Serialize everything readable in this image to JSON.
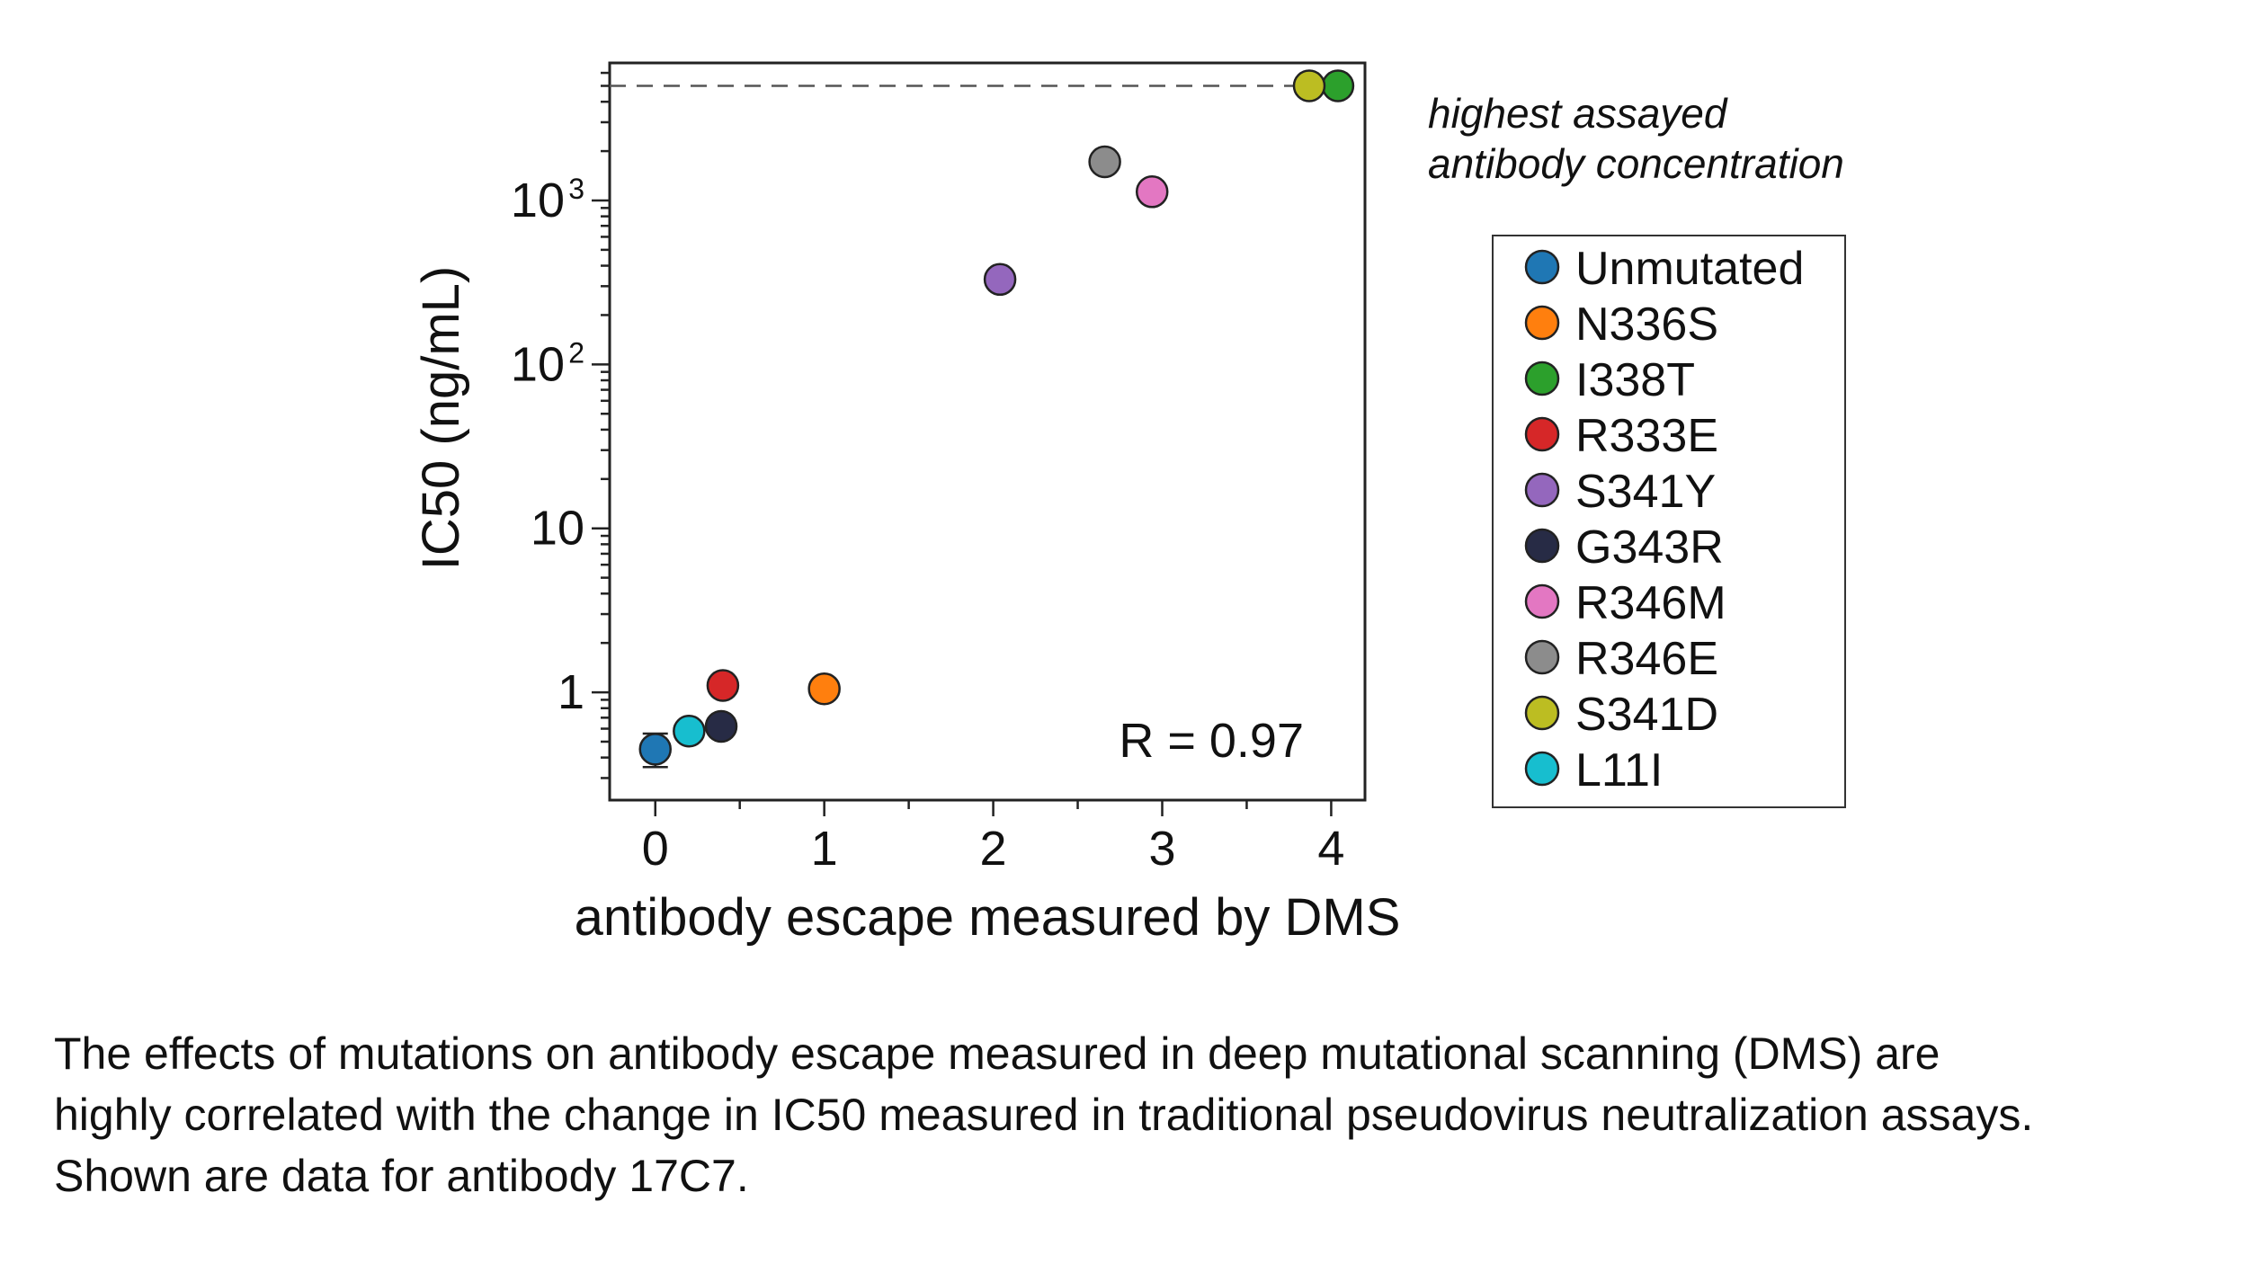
{
  "chart_data": {
    "type": "scatter",
    "xlabel": "antibody escape measured by DMS",
    "ylabel": "IC50 (ng/mL)",
    "xlim": [
      -0.27,
      4.2
    ],
    "ylim": [
      0.22,
      6900
    ],
    "yscale": "log",
    "x_ticks": [
      0,
      1,
      2,
      3,
      4
    ],
    "y_ticks": [
      {
        "value": 1,
        "label": "1",
        "sup": ""
      },
      {
        "value": 10,
        "label": "10",
        "sup": ""
      },
      {
        "value": 100,
        "label": "10",
        "sup": "2"
      },
      {
        "value": 1000,
        "label": "10",
        "sup": "3"
      }
    ],
    "reference_line": {
      "y": 5000,
      "label_lines": [
        "highest assayed",
        "antibody concentration"
      ]
    },
    "annotation": "R = 0.97",
    "legend_position": "right",
    "series": [
      {
        "name": "Unmutated",
        "color": "#1f77b4",
        "x": 0.0,
        "y": 0.45,
        "error": [
          0.35,
          0.56
        ]
      },
      {
        "name": "N336S",
        "color": "#ff7f0e",
        "x": 1.0,
        "y": 1.05
      },
      {
        "name": "I338T",
        "color": "#2ca02c",
        "x": 4.04,
        "y": 5000
      },
      {
        "name": "R333E",
        "color": "#d62728",
        "x": 0.4,
        "y": 1.1
      },
      {
        "name": "S341Y",
        "color": "#9467bd",
        "x": 2.04,
        "y": 330
      },
      {
        "name": "G343R",
        "color": "#272b45",
        "x": 0.39,
        "y": 0.62
      },
      {
        "name": "R346M",
        "color": "#e377c2",
        "x": 2.94,
        "y": 1130
      },
      {
        "name": "R346E",
        "color": "#8c8c8c",
        "x": 2.66,
        "y": 1720
      },
      {
        "name": "S341D",
        "color": "#bcbd22",
        "x": 3.87,
        "y": 5000
      },
      {
        "name": "L11I",
        "color": "#17becf",
        "x": 0.2,
        "y": 0.58
      }
    ]
  },
  "caption": {
    "lines": [
      "The effects of mutations on antibody escape measured in deep mutational scanning (DMS) are",
      "highly correlated with the change in IC50 measured in traditional pseudovirus neutralization assays.",
      "Shown are data for antibody 17C7."
    ]
  }
}
